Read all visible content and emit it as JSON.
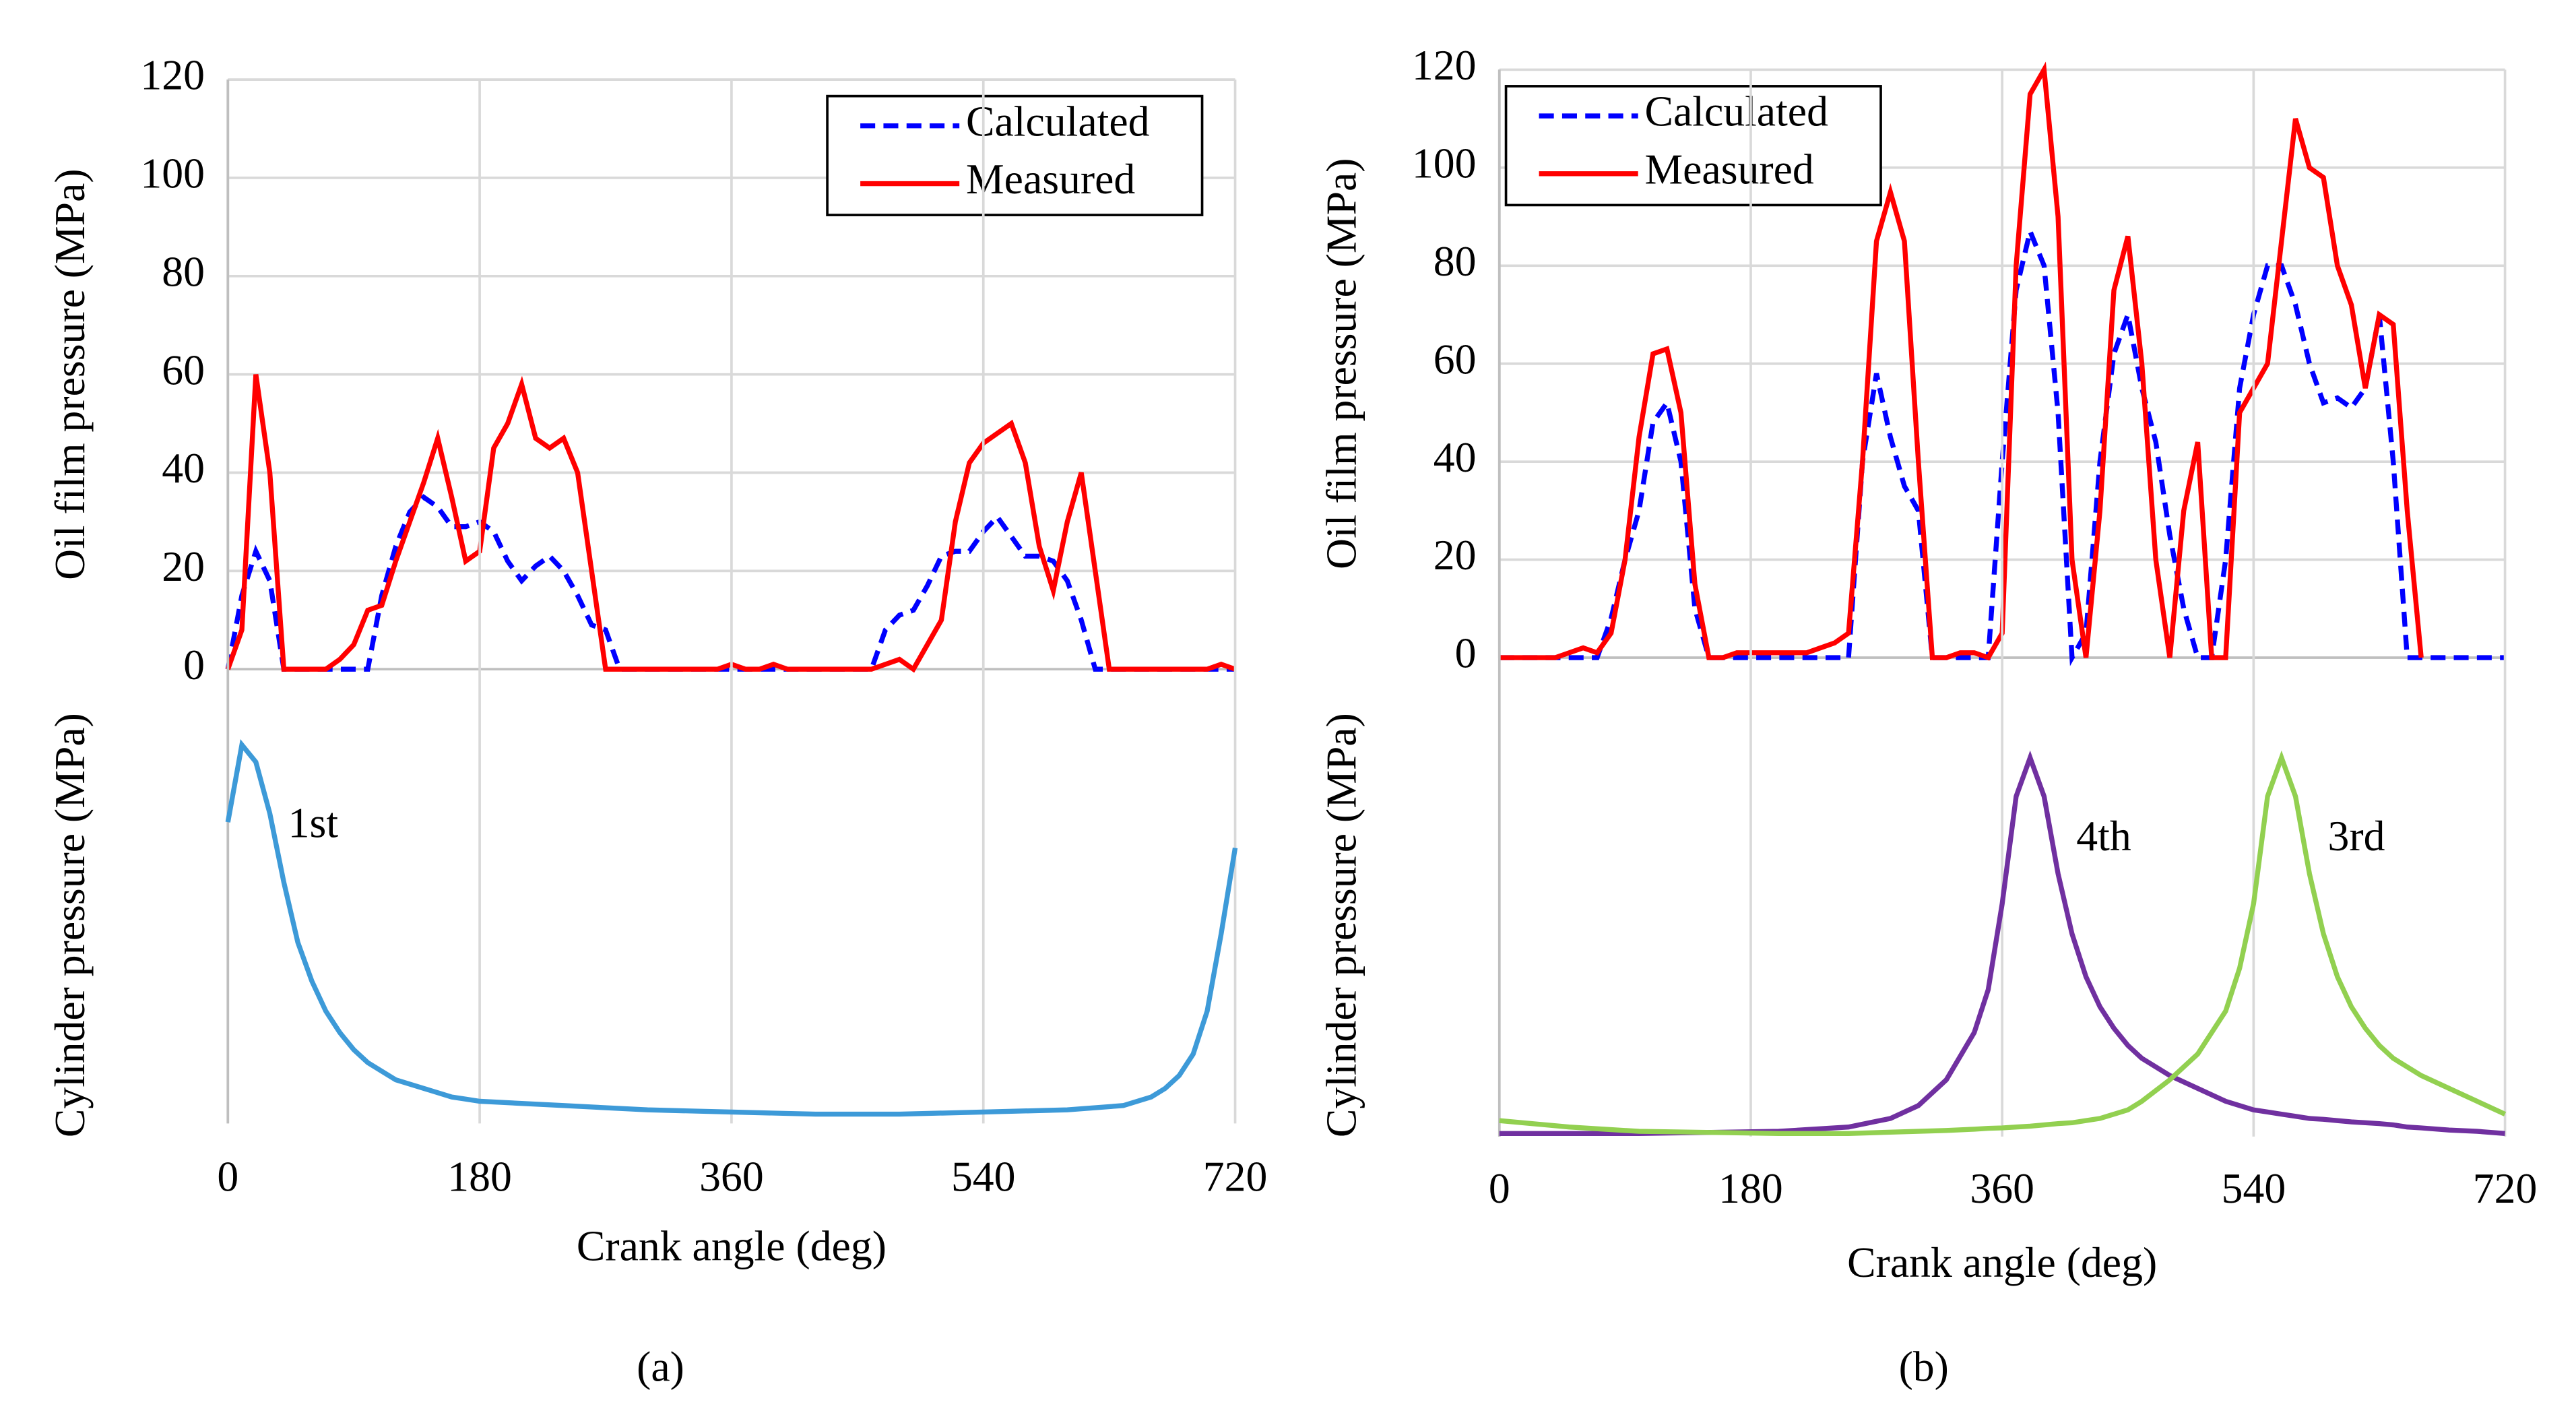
{
  "chart_data": [
    {
      "type": "line",
      "ylabel": "Oil film pressure (MPa)",
      "xlim": [
        0,
        720
      ],
      "ylim": [
        0,
        120
      ],
      "yticks": [
        0,
        20,
        40,
        60,
        80,
        100,
        120
      ],
      "grid": true,
      "legend": "upper right",
      "x": [
        0,
        10,
        20,
        30,
        40,
        50,
        60,
        70,
        80,
        90,
        100,
        110,
        120,
        130,
        140,
        150,
        160,
        170,
        180,
        190,
        200,
        210,
        220,
        230,
        240,
        250,
        260,
        270,
        280,
        290,
        300,
        310,
        320,
        330,
        340,
        350,
        360,
        370,
        380,
        390,
        400,
        410,
        420,
        430,
        440,
        450,
        460,
        470,
        480,
        490,
        500,
        510,
        520,
        530,
        540,
        550,
        560,
        570,
        580,
        590,
        600,
        610,
        620,
        630,
        640,
        650,
        660,
        670,
        680,
        690,
        700,
        710,
        720
      ],
      "series": [
        {
          "name": "Calculated",
          "color": "#0000ff",
          "style": "dashed",
          "values": [
            0,
            15,
            24,
            18,
            0,
            0,
            0,
            0,
            0,
            0,
            0,
            15,
            25,
            32,
            35,
            33,
            29,
            29,
            30,
            28,
            22,
            18,
            21,
            23,
            20,
            15,
            9,
            8,
            0,
            0,
            0,
            0,
            0,
            0,
            0,
            0,
            0,
            0,
            0,
            0,
            0,
            0,
            0,
            0,
            0,
            0,
            0,
            8,
            11,
            12,
            17,
            23,
            24,
            24,
            28,
            31,
            27,
            23,
            23,
            22,
            18,
            10,
            0,
            0,
            0,
            0,
            0,
            0,
            0,
            0,
            0,
            0,
            0
          ]
        },
        {
          "name": "Measured",
          "color": "#ff0000",
          "style": "solid",
          "values": [
            0,
            8,
            60,
            40,
            0,
            0,
            0,
            0,
            2,
            5,
            12,
            13,
            22,
            30,
            38,
            47,
            35,
            22,
            24,
            45,
            50,
            58,
            47,
            45,
            47,
            40,
            20,
            0,
            0,
            0,
            0,
            0,
            0,
            0,
            0,
            0,
            1,
            0,
            0,
            1,
            0,
            0,
            0,
            0,
            0,
            0,
            0,
            1,
            2,
            0,
            5,
            10,
            30,
            42,
            46,
            48,
            50,
            42,
            25,
            16,
            30,
            40,
            20,
            0,
            0,
            0,
            0,
            0,
            0,
            0,
            0,
            1,
            0
          ]
        }
      ]
    },
    {
      "type": "line",
      "ylabel": "Cylinder pressure (MPa)",
      "xlabel": "Crank angle (deg)",
      "label": "(a)",
      "xlim": [
        0,
        720
      ],
      "xticks": [
        0,
        180,
        360,
        540,
        720
      ],
      "ylim": [
        0,
        100
      ],
      "grid": true,
      "x": [
        0,
        10,
        20,
        30,
        40,
        50,
        60,
        70,
        80,
        90,
        100,
        110,
        120,
        130,
        140,
        150,
        160,
        170,
        180,
        240,
        300,
        360,
        420,
        480,
        540,
        600,
        640,
        650,
        660,
        670,
        680,
        690,
        700,
        710,
        720
      ],
      "series": [
        {
          "name": "1st",
          "color": "#3d9ad8",
          "style": "solid",
          "values": [
            74,
            92,
            88,
            76,
            60,
            46,
            37,
            30,
            25,
            21,
            18,
            16,
            14,
            13,
            12,
            11,
            10,
            9.5,
            9,
            8,
            7,
            6.5,
            6,
            6,
            6.5,
            7,
            8,
            9,
            10,
            12,
            15,
            20,
            30,
            48,
            68
          ]
        }
      ]
    },
    {
      "type": "line",
      "ylabel": "Oil film pressure (MPa)",
      "xlim": [
        0,
        720
      ],
      "ylim": [
        0,
        120
      ],
      "yticks": [
        0,
        20,
        40,
        60,
        80,
        100,
        120
      ],
      "grid": true,
      "legend": "upper left",
      "x": [
        0,
        10,
        20,
        30,
        40,
        50,
        60,
        70,
        80,
        90,
        100,
        110,
        120,
        130,
        140,
        150,
        160,
        170,
        180,
        190,
        200,
        210,
        220,
        230,
        240,
        250,
        260,
        270,
        280,
        290,
        300,
        310,
        320,
        330,
        340,
        350,
        360,
        370,
        380,
        390,
        400,
        410,
        420,
        430,
        440,
        450,
        460,
        470,
        480,
        490,
        500,
        510,
        520,
        530,
        540,
        550,
        560,
        570,
        580,
        590,
        600,
        610,
        620,
        630,
        640,
        650,
        660,
        670,
        680,
        690,
        700,
        710,
        720
      ],
      "series": [
        {
          "name": "Calculated",
          "color": "#0000ff",
          "style": "dashed",
          "values": [
            0,
            0,
            0,
            0,
            0,
            0,
            0,
            0,
            8,
            20,
            30,
            48,
            52,
            40,
            10,
            0,
            0,
            0,
            0,
            0,
            0,
            0,
            0,
            0,
            0,
            0,
            40,
            58,
            45,
            35,
            30,
            0,
            0,
            0,
            0,
            0,
            40,
            75,
            87,
            80,
            50,
            0,
            5,
            40,
            62,
            70,
            55,
            44,
            25,
            10,
            0,
            0,
            20,
            55,
            70,
            80,
            80,
            72,
            60,
            52,
            53,
            51,
            55,
            70,
            40,
            0,
            0,
            0,
            0,
            0,
            0,
            0,
            0
          ]
        },
        {
          "name": "Measured",
          "color": "#ff0000",
          "style": "solid",
          "values": [
            0,
            0,
            0,
            0,
            0,
            1,
            2,
            1,
            5,
            20,
            45,
            62,
            63,
            50,
            15,
            0,
            0,
            1,
            1,
            1,
            1,
            1,
            1,
            2,
            3,
            5,
            40,
            85,
            95,
            85,
            40,
            0,
            0,
            1,
            1,
            0,
            5,
            80,
            115,
            120,
            90,
            20,
            0,
            30,
            75,
            86,
            60,
            20,
            0,
            30,
            44,
            0,
            0,
            50,
            55,
            60,
            85,
            110,
            100,
            98,
            80,
            72,
            55,
            70,
            68,
            30,
            0,
            null,
            null,
            null,
            null,
            null,
            null
          ]
        }
      ]
    },
    {
      "type": "line",
      "ylabel": "Cylinder pressure (MPa)",
      "xlabel": "Crank angle (deg)",
      "label": "(b)",
      "xlim": [
        0,
        720
      ],
      "xticks": [
        0,
        180,
        360,
        540,
        720
      ],
      "ylim": [
        0,
        100
      ],
      "grid": true,
      "x": [
        0,
        50,
        100,
        200,
        250,
        280,
        300,
        320,
        340,
        350,
        360,
        370,
        380,
        390,
        400,
        410,
        420,
        430,
        440,
        450,
        460,
        480,
        500,
        520,
        530,
        540,
        550,
        560,
        570,
        580,
        590,
        600,
        610,
        620,
        630,
        640,
        650,
        660,
        680,
        700,
        720
      ],
      "series": [
        {
          "name": "4th",
          "color": "#7030a0",
          "style": "solid",
          "values": [
            1.5,
            1.5,
            1.5,
            2,
            3,
            5,
            8,
            14,
            25,
            35,
            55,
            80,
            89,
            80,
            62,
            48,
            38,
            31,
            26,
            22,
            19,
            15,
            12,
            9,
            8,
            7,
            6.5,
            6,
            5.5,
            5,
            4.8,
            4.5,
            4.2,
            4,
            3.8,
            3.5,
            3,
            2.8,
            2.3,
            2,
            1.5
          ]
        },
        {
          "name": "3rd",
          "color": "#92d050",
          "style": "solid",
          "values": [
            4.5,
            3,
            2,
            1.5,
            1.5,
            1.8,
            2,
            2.2,
            2.5,
            2.7,
            2.8,
            3,
            3.2,
            3.5,
            3.8,
            4,
            4.5,
            5,
            6,
            7,
            9,
            14,
            20,
            30,
            40,
            55,
            80,
            89,
            80,
            62,
            48,
            38,
            31,
            26,
            22,
            19,
            17,
            15,
            12,
            9,
            6
          ]
        }
      ]
    }
  ]
}
